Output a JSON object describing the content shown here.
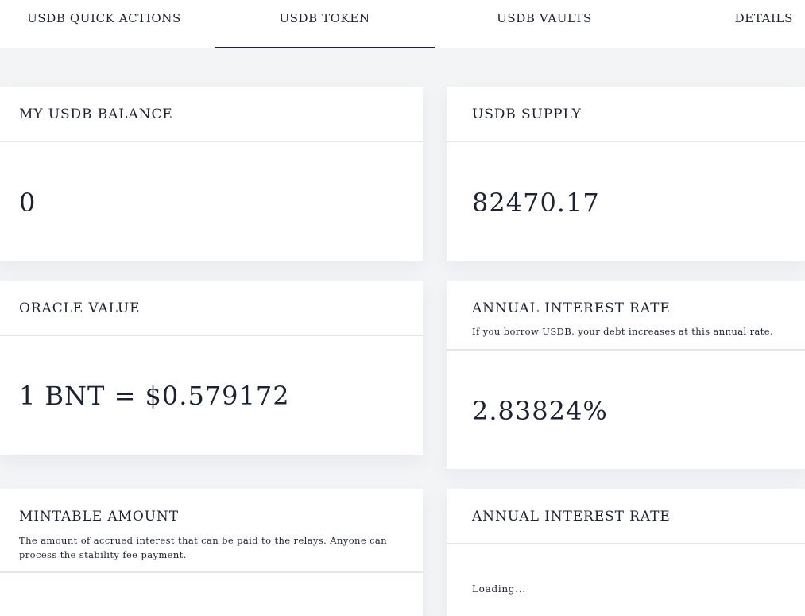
{
  "tabs": {
    "quick_actions": "USDB QUICK ACTIONS",
    "token": "USDB TOKEN",
    "vaults": "USDB VAULTS",
    "details": "DETAILS"
  },
  "balance": {
    "title": "MY USDB BALANCE",
    "value": "0"
  },
  "supply": {
    "title": "USDB SUPPLY",
    "value": "82470.17"
  },
  "oracle": {
    "title": "ORACLE VALUE",
    "value": "1 BNT = $0.579172"
  },
  "interest": {
    "title": "ANNUAL INTEREST RATE",
    "description": "If you borrow USDB, your debt increases at this annual rate.",
    "value": "2.83824%"
  },
  "mintable": {
    "title": "MINTABLE AMOUNT",
    "description": "The amount of accrued interest that can be paid to the relays. Anyone can process the stability fee payment."
  },
  "interest2": {
    "title": "ANNUAL INTEREST RATE",
    "loading": "Loading..."
  }
}
